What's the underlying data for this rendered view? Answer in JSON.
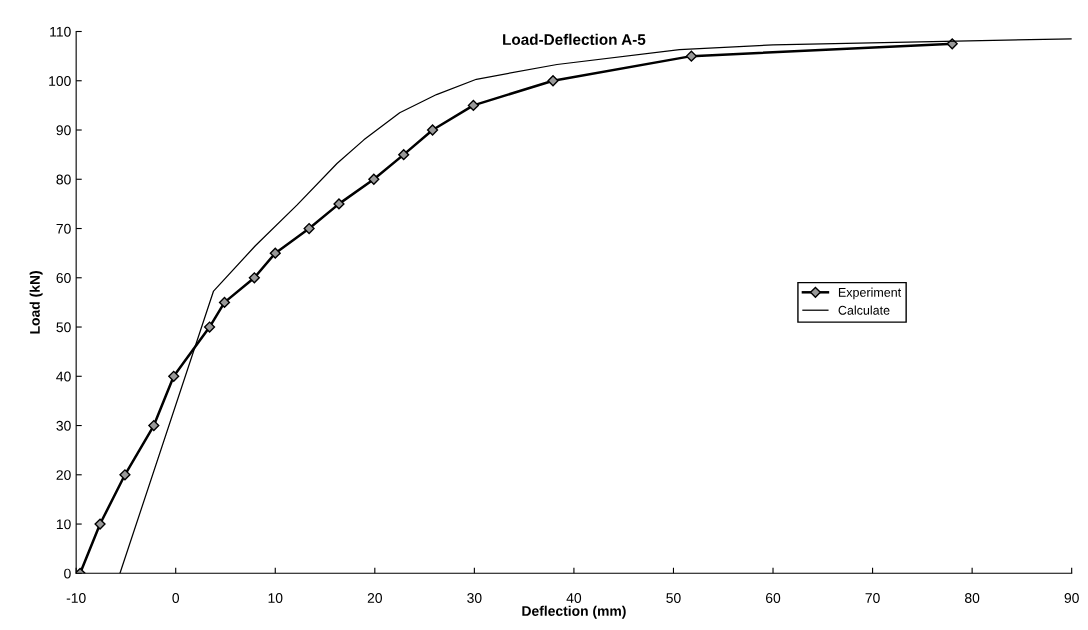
{
  "chart_data": {
    "type": "line",
    "title": "Load-Deflection A-5",
    "xlabel": "Deflection (mm)",
    "ylabel": "Load (kN)",
    "xlim": [
      -10,
      90
    ],
    "xticks": [
      -10,
      0,
      10,
      20,
      30,
      40,
      50,
      60,
      70,
      80,
      90
    ],
    "ylim": [
      0,
      110
    ],
    "yticks": [
      0,
      10,
      20,
      30,
      40,
      50,
      60,
      70,
      80,
      90,
      100,
      110
    ],
    "grid": false,
    "legend": "right",
    "series": [
      {
        "name": "Experiment",
        "color": "#000000",
        "marker": "diamond",
        "line_style": "solid",
        "x": [
          -9.6,
          -7.6,
          -5.1,
          -2.2,
          -0.2,
          3.4,
          4.9,
          7.9,
          10.0,
          13.4,
          16.4,
          19.9,
          22.9,
          25.8,
          29.9,
          37.9,
          51.8,
          78.0
        ],
        "values": [
          0,
          10,
          20,
          30,
          40,
          50,
          55,
          60,
          65,
          70,
          75,
          80,
          85,
          90,
          95,
          100,
          105,
          107.5
        ]
      },
      {
        "name": "Calculate",
        "color": "#000000",
        "marker": "none",
        "line_style": "solid",
        "x": [
          -5.6,
          3.8,
          8.0,
          12.2,
          16.2,
          18.9,
          22.5,
          26.2,
          30.2,
          38.3,
          50.6,
          60.0,
          90.0
        ],
        "values": [
          0,
          57.3,
          66.5,
          74.8,
          83.2,
          88.0,
          93.5,
          97.2,
          100.3,
          103.3,
          106.3,
          107.3,
          108.5
        ]
      }
    ]
  }
}
